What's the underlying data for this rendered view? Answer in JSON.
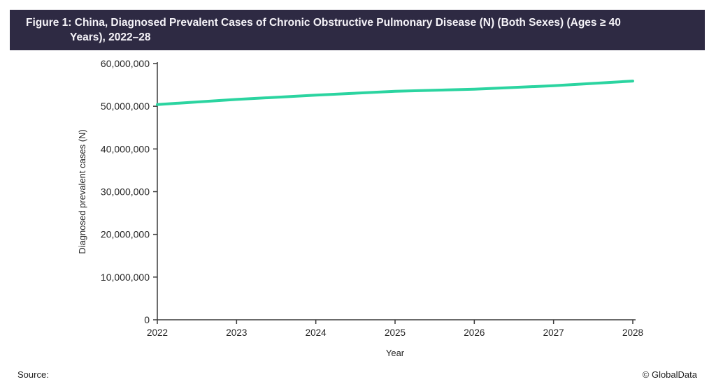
{
  "header": {
    "title_line1": "Figure 1: China, Diagnosed Prevalent Cases of Chronic Obstructive Pulmonary Disease (N) (Both Sexes) (Ages ≥ 40",
    "title_line2": "Years), 2022–28"
  },
  "chart_data": {
    "type": "line",
    "x": [
      2022,
      2023,
      2024,
      2025,
      2026,
      2027,
      2028
    ],
    "series": [
      {
        "name": "Diagnosed prevalent cases",
        "values": [
          50400000,
          51600000,
          52600000,
          53500000,
          54000000,
          54800000,
          55900000
        ],
        "color": "#2BD4A0"
      }
    ],
    "xlabel": "Year",
    "ylabel": "Diagnosed prevalent cases (N)",
    "ylim": [
      0,
      60000000
    ],
    "ytick_step": 10000000,
    "grid": false,
    "legend": false
  },
  "footer": {
    "source_label": "Source:",
    "copyright": "© GlobalData"
  },
  "colors": {
    "title_bar_bg": "#2E2A43",
    "title_text": "#F5F3F8",
    "line": "#2BD4A0",
    "axis": "#3A3A3A",
    "tick_text": "#262626"
  }
}
